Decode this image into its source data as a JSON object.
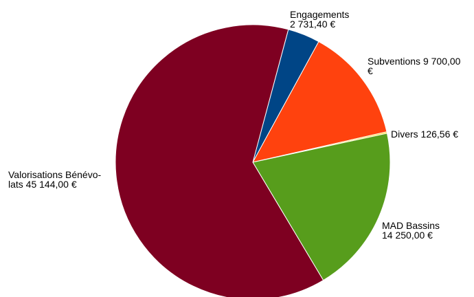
{
  "chart_data": {
    "type": "pie",
    "title": "",
    "slices": [
      {
        "label": "Engagements",
        "value": 2731.4,
        "value_text": "2 731,40 €",
        "color": "#004586"
      },
      {
        "label": "Subventions",
        "value": 9700.0,
        "value_text": "9 700,00 €",
        "color": "#ff420e"
      },
      {
        "label": "Divers",
        "value": 126.56,
        "value_text": "126,56 €",
        "color": "#ffd320"
      },
      {
        "label": "MAD Bassins",
        "value": 14250.0,
        "value_text": "14 250,00 €",
        "color": "#579d1c"
      },
      {
        "label": "Valorisations Bénévolats",
        "value": 45144.0,
        "value_text": "45 144,00 €",
        "color": "#7e0021"
      }
    ],
    "legend": "none",
    "labels_text": {
      "engagements": {
        "line1": "Engagements",
        "line2": "2 731,40 €"
      },
      "subventions": {
        "line1": "Subventions  9 700,00",
        "line2": "€"
      },
      "divers": {
        "line1": "Divers  126,56 €"
      },
      "mad_bassins": {
        "line1": "MAD Bassins",
        "line2": "14 250,00 €"
      },
      "valorisations": {
        "line1": "Valorisations Bénévo-",
        "line2": "lats  45 144,00 €"
      }
    }
  }
}
